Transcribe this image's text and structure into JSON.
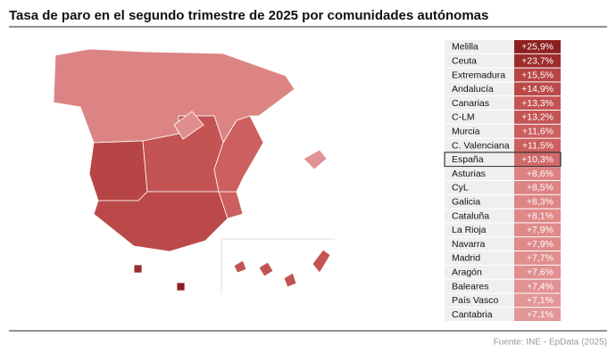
{
  "title": "Tasa de paro en el segundo trimestre de 2025 por comunidades autónomas",
  "source": "Fuente: INE - EpData (2025)",
  "table": {
    "rows": [
      {
        "name": "Melilla",
        "value": "+25,9%",
        "color": "#8e1f1f"
      },
      {
        "name": "Ceuta",
        "value": "+23,7%",
        "color": "#9c2b2b"
      },
      {
        "name": "Extremadura",
        "value": "+15,5%",
        "color": "#b84545"
      },
      {
        "name": "Andalucía",
        "value": "+14,9%",
        "color": "#bb4949"
      },
      {
        "name": "Canarias",
        "value": "+13,3%",
        "color": "#c45353"
      },
      {
        "name": "C-LM",
        "value": "+13,2%",
        "color": "#c45454"
      },
      {
        "name": "Murcia",
        "value": "+11,6%",
        "color": "#cc5f5f"
      },
      {
        "name": "C. Valenciana",
        "value": "+11,5%",
        "color": "#cc6060"
      },
      {
        "name": "España",
        "value": "+10,3%",
        "color": "#d06a6a"
      },
      {
        "name": "Asturias",
        "value": "+8,6%",
        "color": "#dc8282"
      },
      {
        "name": "CyL",
        "value": "+8,5%",
        "color": "#dc8383"
      },
      {
        "name": "Galicia",
        "value": "+8,3%",
        "color": "#dd8686"
      },
      {
        "name": "Cataluña",
        "value": "+8,1%",
        "color": "#de8888"
      },
      {
        "name": "La Rioja",
        "value": "+7,9%",
        "color": "#df8b8b"
      },
      {
        "name": "Navarra",
        "value": "+7,9%",
        "color": "#df8b8b"
      },
      {
        "name": "Madrid",
        "value": "+7,7%",
        "color": "#e08e8e"
      },
      {
        "name": "Aragón",
        "value": "+7,6%",
        "color": "#e08f8f"
      },
      {
        "name": "Baleares",
        "value": "+7,4%",
        "color": "#e19292"
      },
      {
        "name": "País Vasco",
        "value": "+7,1%",
        "color": "#e29696"
      },
      {
        "name": "Cantabria",
        "value": "+7,1%",
        "color": "#e29696"
      }
    ]
  }
}
